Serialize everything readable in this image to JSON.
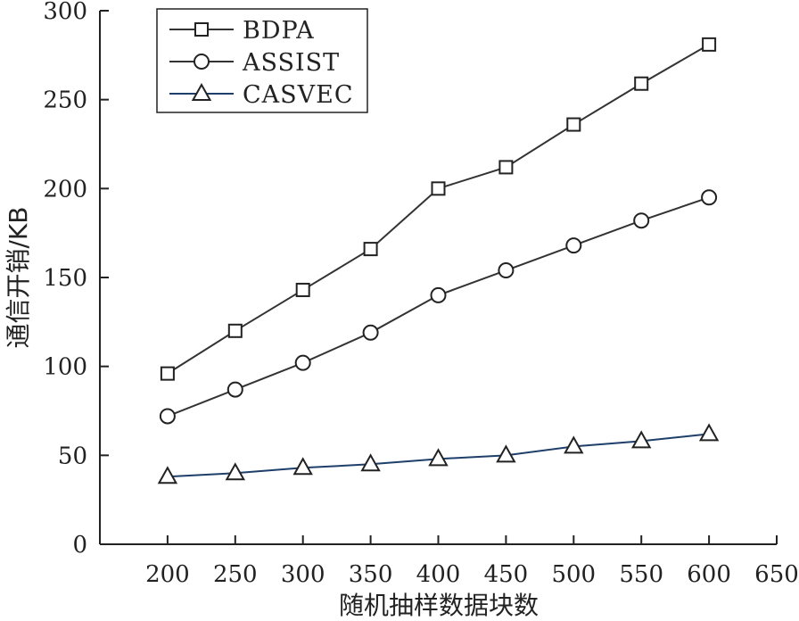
{
  "chart_data": {
    "type": "line",
    "title": "",
    "xlabel": "随机抽样数据块数",
    "ylabel": "通信开销/KB",
    "xlim": [
      150,
      650
    ],
    "ylim": [
      0,
      300
    ],
    "xticks": [
      200,
      250,
      300,
      350,
      400,
      450,
      500,
      550,
      600,
      650
    ],
    "yticks": [
      0,
      50,
      100,
      150,
      200,
      250,
      300
    ],
    "grid": false,
    "legend_position": "top-left",
    "x": [
      200,
      250,
      300,
      350,
      400,
      450,
      500,
      550,
      600
    ],
    "series": [
      {
        "name": "BDPA",
        "marker": "square",
        "color": "#333333",
        "values": [
          96,
          120,
          143,
          166,
          200,
          212,
          236,
          259,
          281
        ]
      },
      {
        "name": "ASSIST",
        "marker": "circle",
        "color": "#333333",
        "values": [
          72,
          87,
          102,
          119,
          140,
          154,
          168,
          182,
          195
        ]
      },
      {
        "name": "CASVEC",
        "marker": "triangle",
        "color": "#1f3f6b",
        "values": [
          38,
          40,
          43,
          45,
          48,
          50,
          55,
          58,
          62
        ]
      }
    ]
  }
}
